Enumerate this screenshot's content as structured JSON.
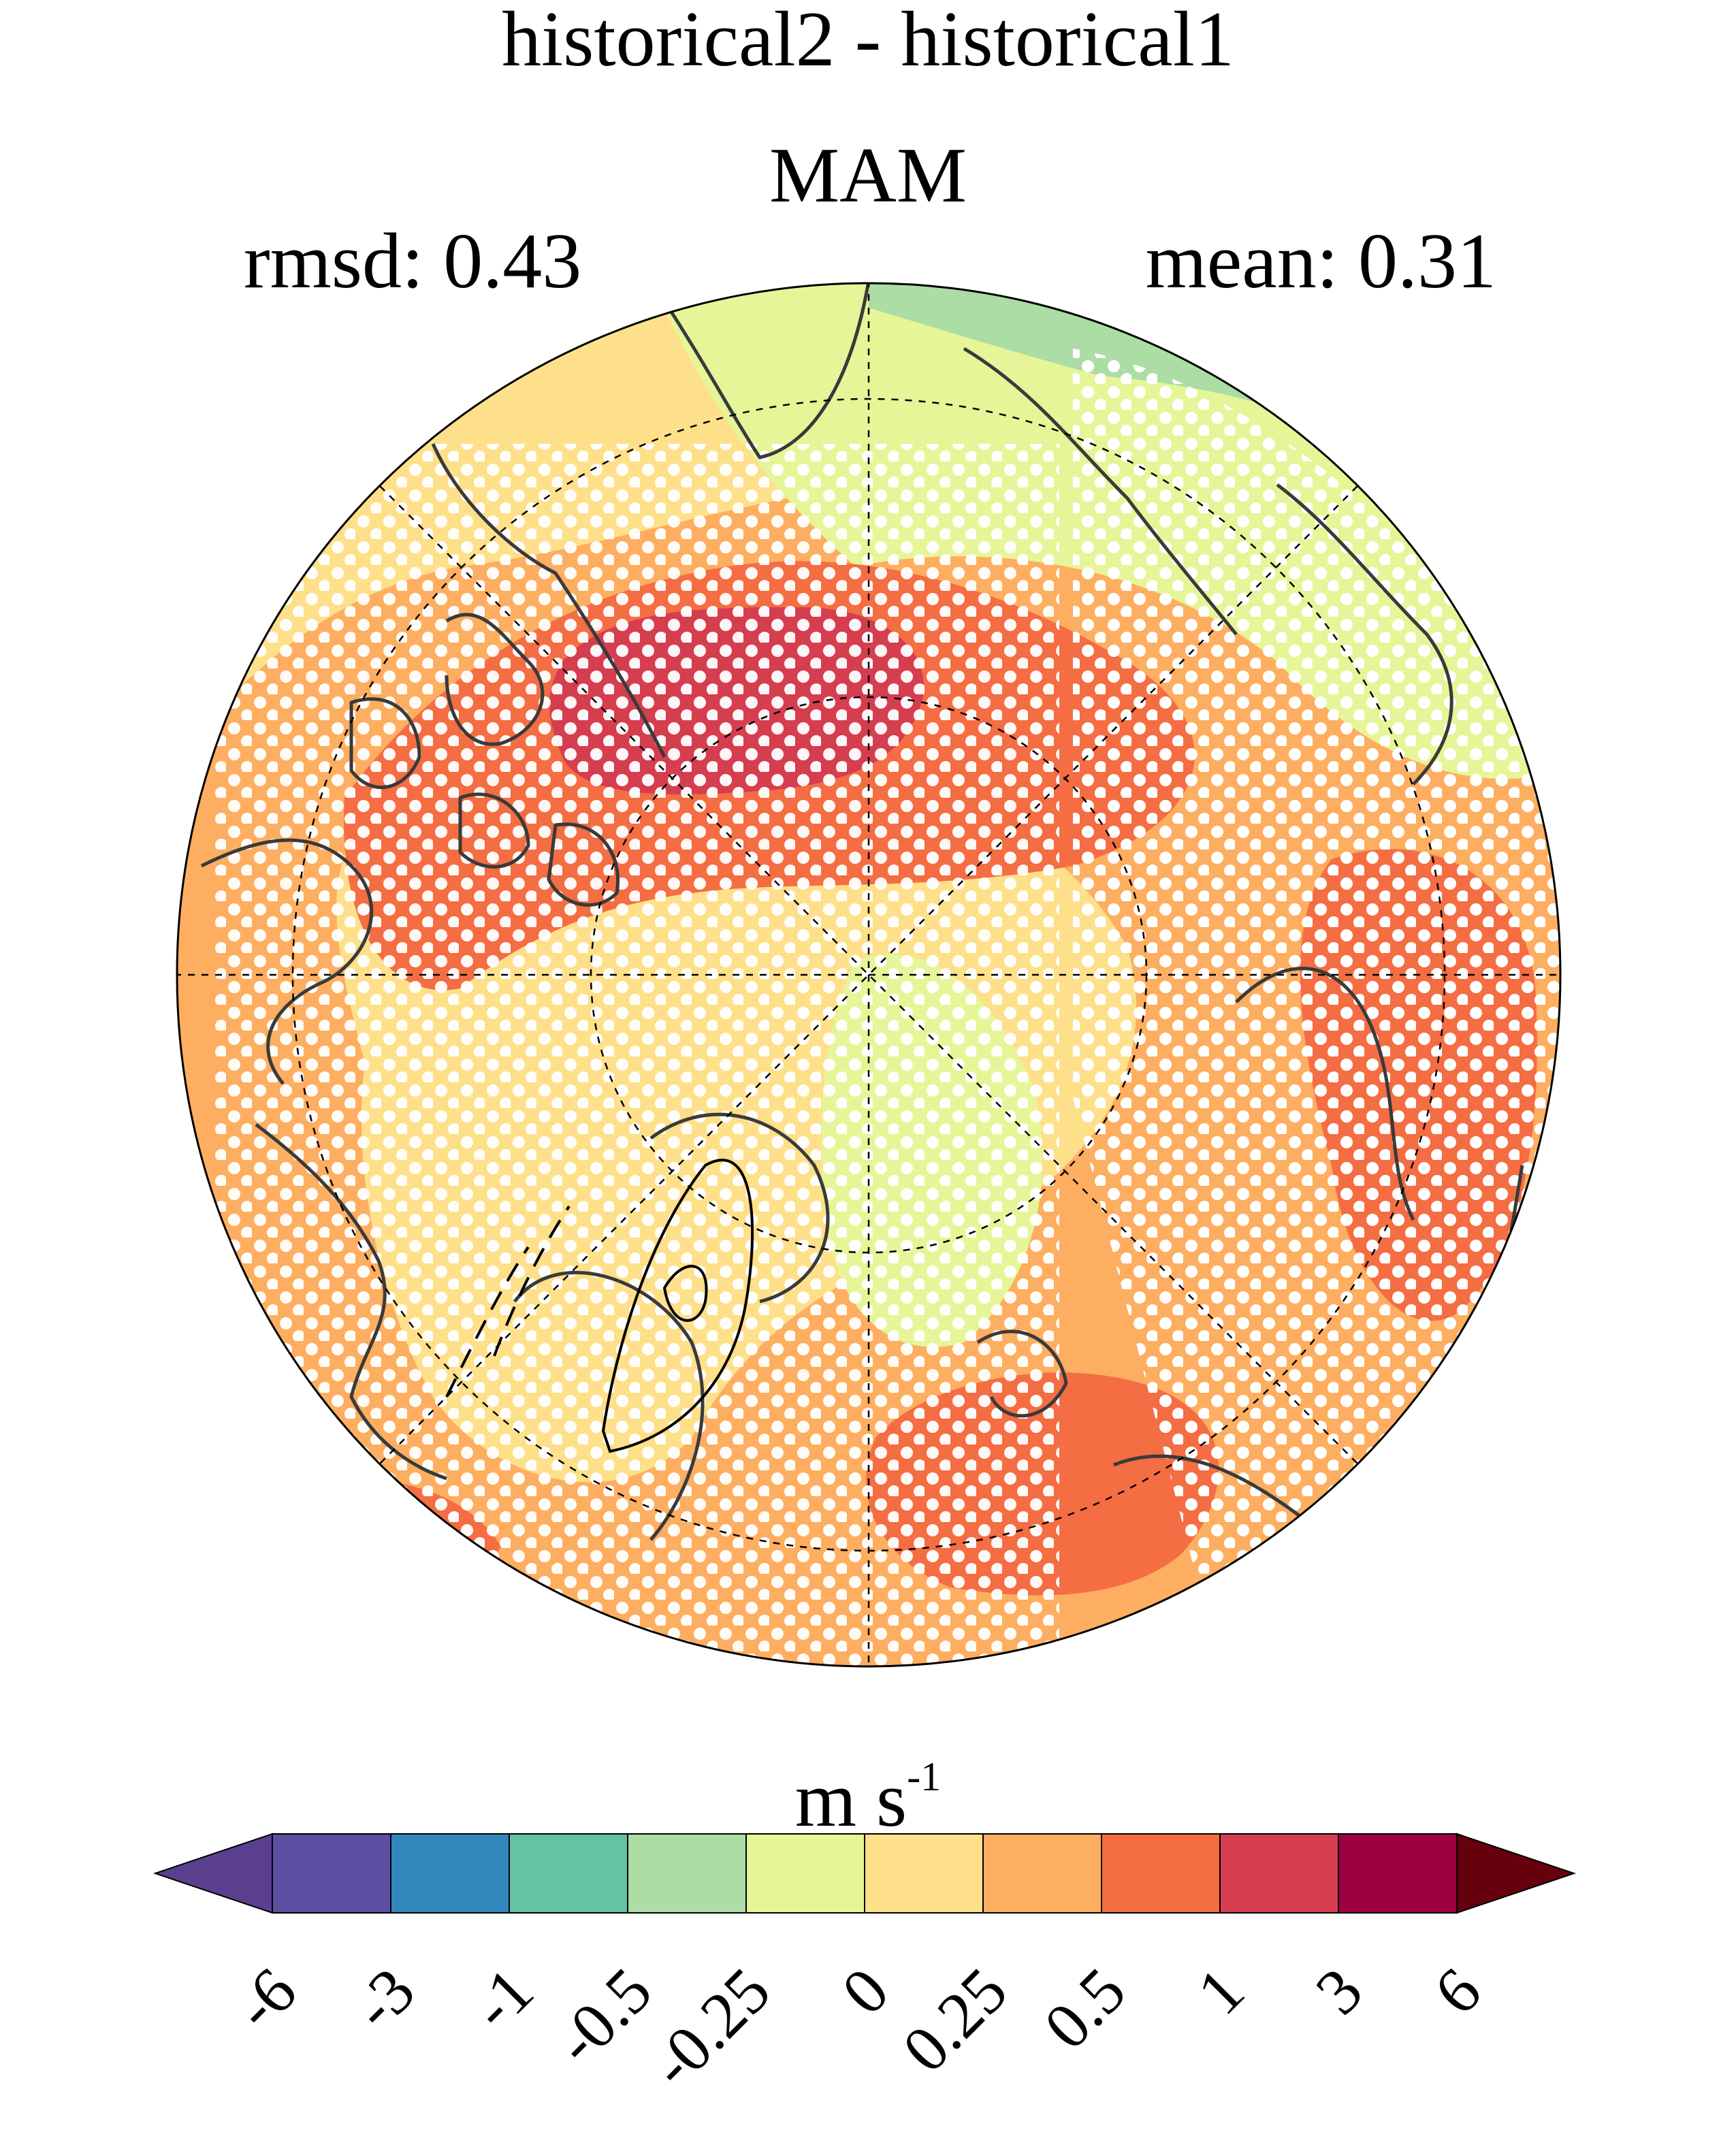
{
  "title": {
    "line1": "historical2 - historical1",
    "line2": "MAM",
    "rmsd": "rmsd: 0.43",
    "mean": "mean: 0.31"
  },
  "colorbar": {
    "units_main": "m s",
    "units_exp": "-1",
    "ticks": [
      "-6",
      "-3",
      "-1",
      "-0.5",
      "-0.25",
      "0",
      "0.25",
      "0.5",
      "1",
      "3",
      "6"
    ],
    "colors": [
      "#5a3f8f",
      "#5e4fa2",
      "#3288bd",
      "#66c2a5",
      "#abdda4",
      "#e6f598",
      "#fee08b",
      "#fdae61",
      "#f46d43",
      "#d53e4f",
      "#9e0142",
      "#67000d"
    ]
  },
  "map": {
    "projection": "north polar stereographic",
    "field_levels": [
      "0 to 0.25",
      "0.25 to 0.5",
      "0.5 to 1",
      "1 to 3",
      "-0.25 to 0",
      "-0.5 to -0.25"
    ],
    "stippling": "white dots mark significant differences",
    "gridlines": "dashed"
  }
}
